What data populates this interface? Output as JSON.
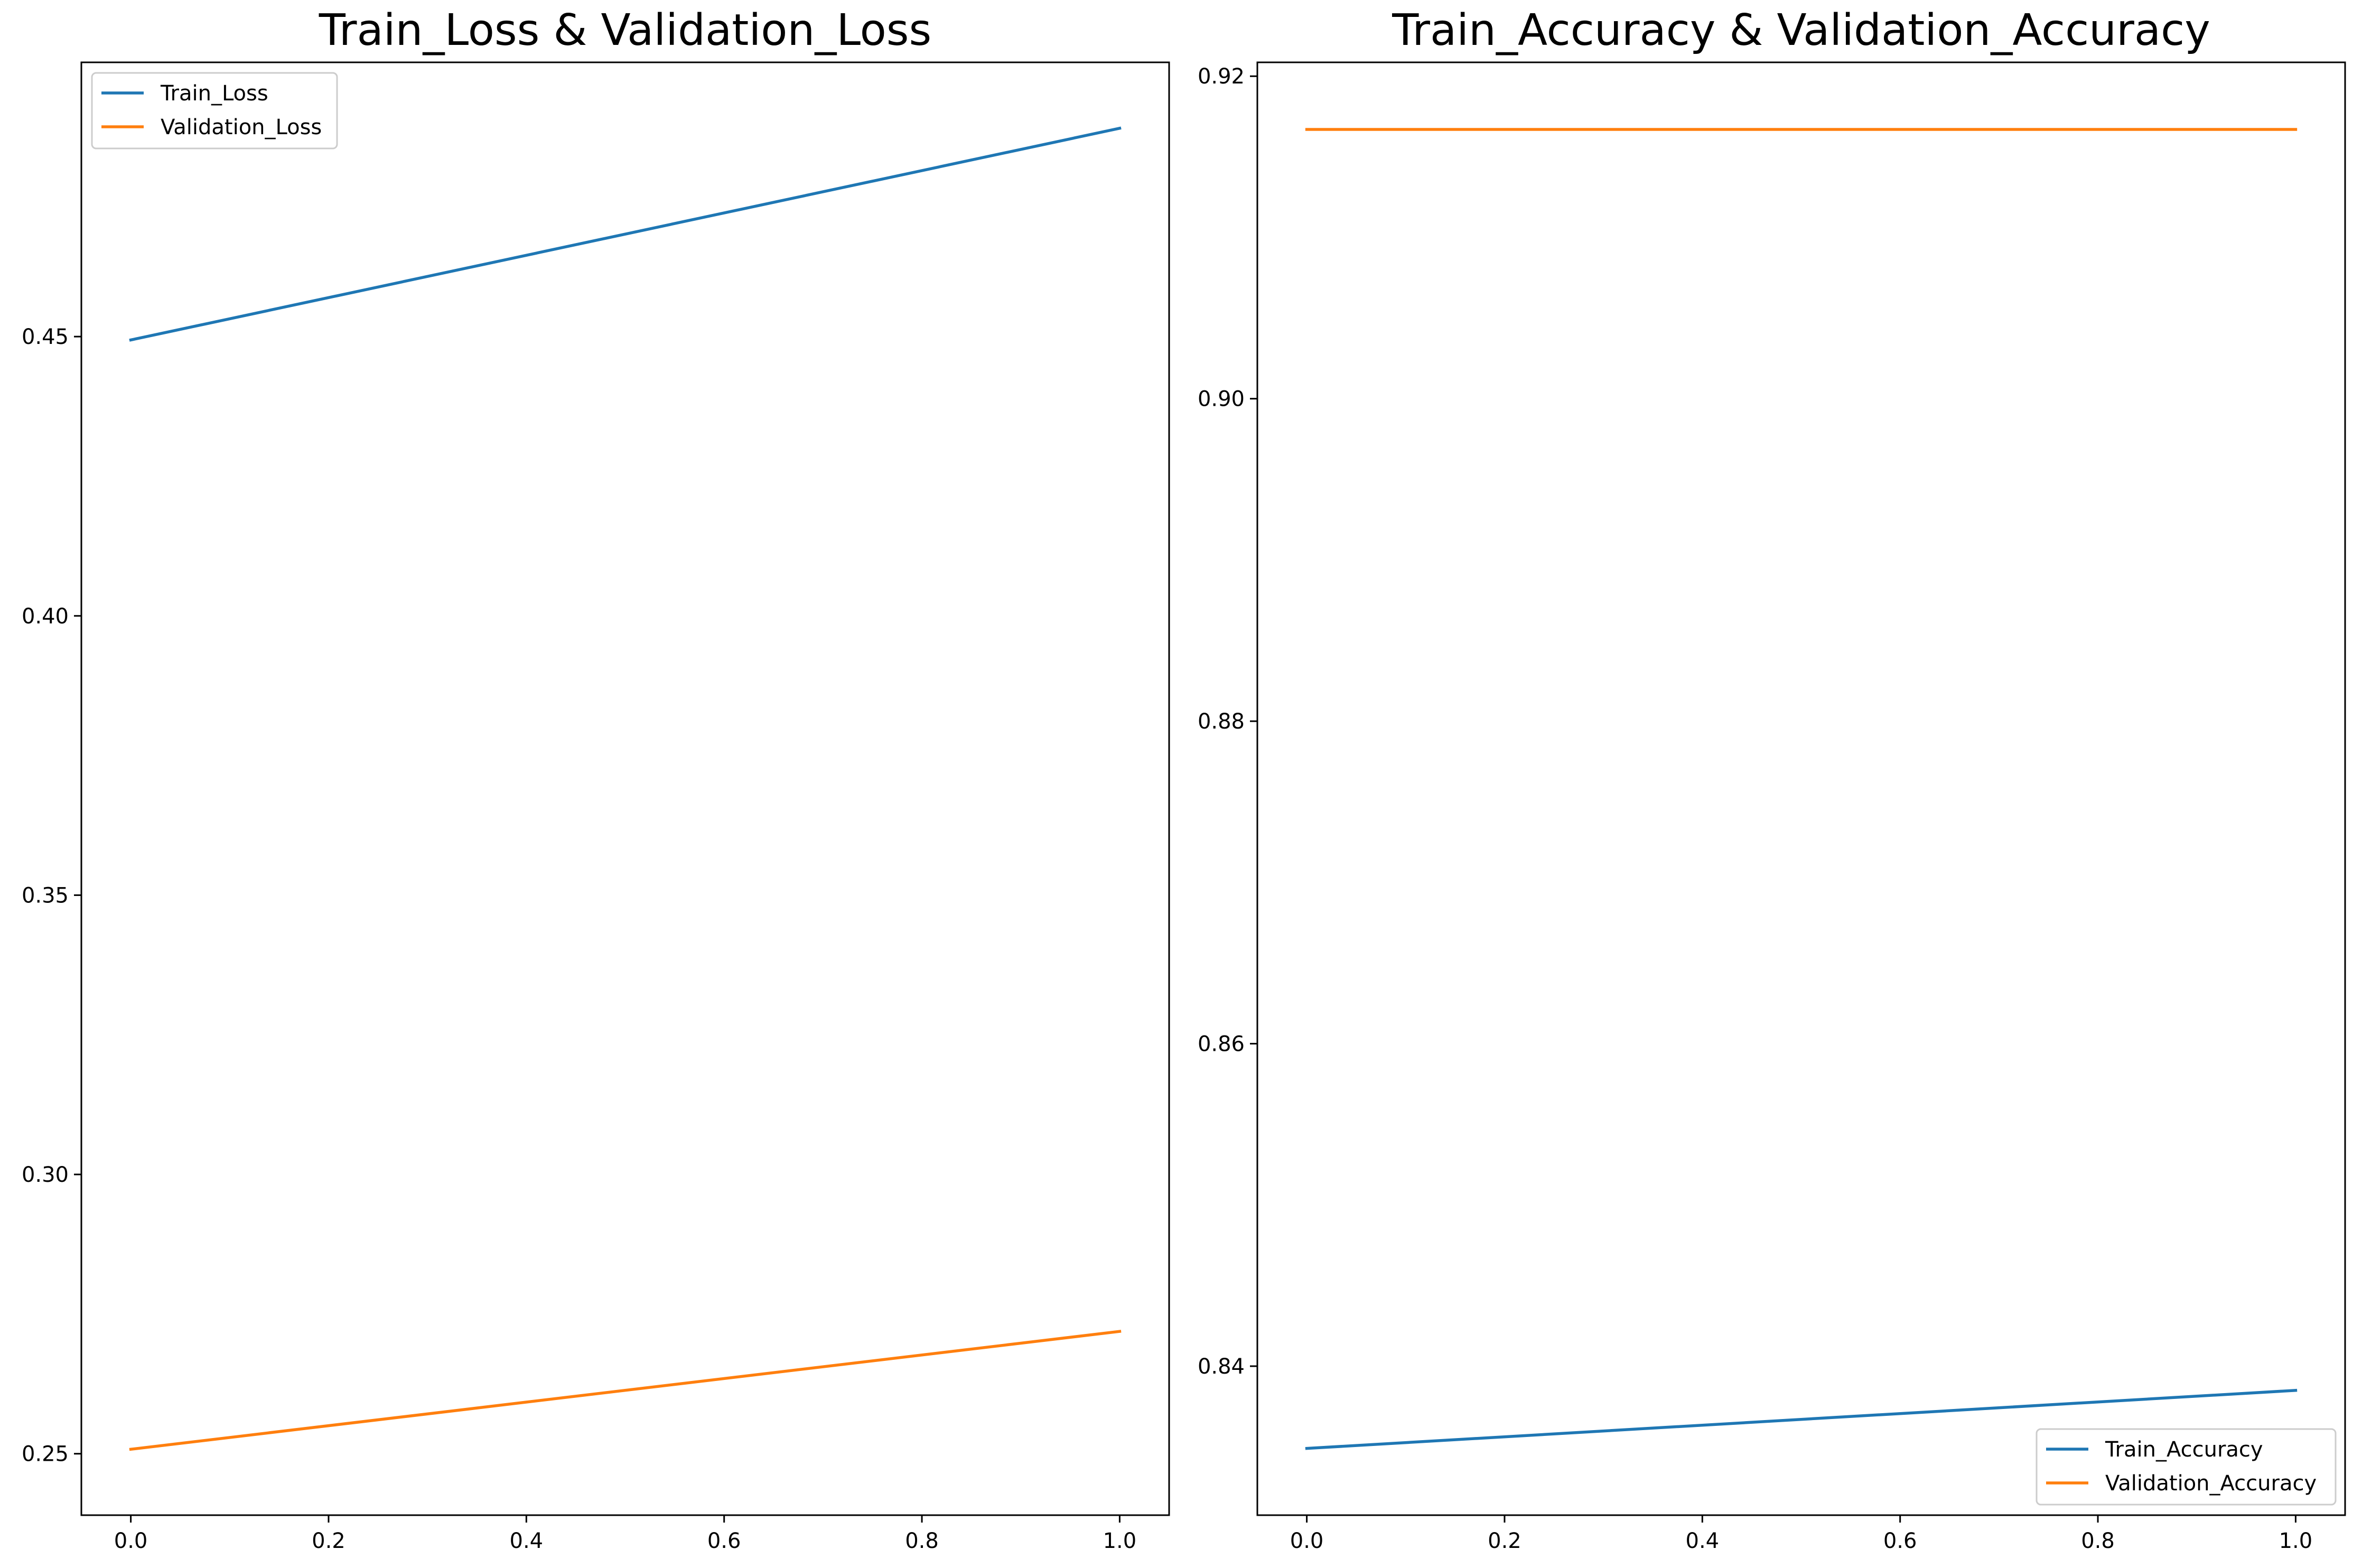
{
  "chart_data": [
    {
      "type": "line",
      "title": "Train_Loss & Validation_Loss",
      "xlabel": "",
      "ylabel": "",
      "x": [
        0.0,
        1.0
      ],
      "series": [
        {
          "name": "Train_Loss",
          "values": [
            0.4494,
            0.4873
          ],
          "color": "#1f77b4"
        },
        {
          "name": "Validation_Loss",
          "values": [
            0.2508,
            0.2719
          ],
          "color": "#ff7f0e"
        }
      ],
      "xlim": [
        -0.05,
        1.05
      ],
      "ylim": [
        0.239,
        0.4991
      ],
      "xticks": [
        0.0,
        0.2,
        0.4,
        0.6,
        0.8,
        1.0
      ],
      "xtick_labels": [
        "0.0",
        "0.2",
        "0.4",
        "0.6",
        "0.8",
        "1.0"
      ],
      "yticks": [
        0.25,
        0.3,
        0.35,
        0.4,
        0.45
      ],
      "ytick_labels": [
        "0.25",
        "0.30",
        "0.35",
        "0.40",
        "0.45"
      ],
      "grid": false,
      "legend": "upper-left"
    },
    {
      "type": "line",
      "title": "Train_Accuracy & Validation_Accuracy",
      "xlabel": "",
      "ylabel": "",
      "x": [
        0.0,
        1.0
      ],
      "series": [
        {
          "name": "Train_Accuracy",
          "values": [
            0.8349,
            0.8385
          ],
          "color": "#1f77b4"
        },
        {
          "name": "Validation_Accuracy",
          "values": [
            0.9167,
            0.9167
          ],
          "color": "#ff7f0e"
        }
      ],
      "xlim": [
        -0.05,
        1.05
      ],
      "ylim": [
        0.83076,
        0.92086
      ],
      "xticks": [
        0.0,
        0.2,
        0.4,
        0.6,
        0.8,
        1.0
      ],
      "xtick_labels": [
        "0.0",
        "0.2",
        "0.4",
        "0.6",
        "0.8",
        "1.0"
      ],
      "yticks": [
        0.84,
        0.86,
        0.88,
        0.9,
        0.92
      ],
      "ytick_labels": [
        "0.84",
        "0.86",
        "0.88",
        "0.90",
        "0.92"
      ],
      "grid": false,
      "legend": "lower-right"
    }
  ]
}
